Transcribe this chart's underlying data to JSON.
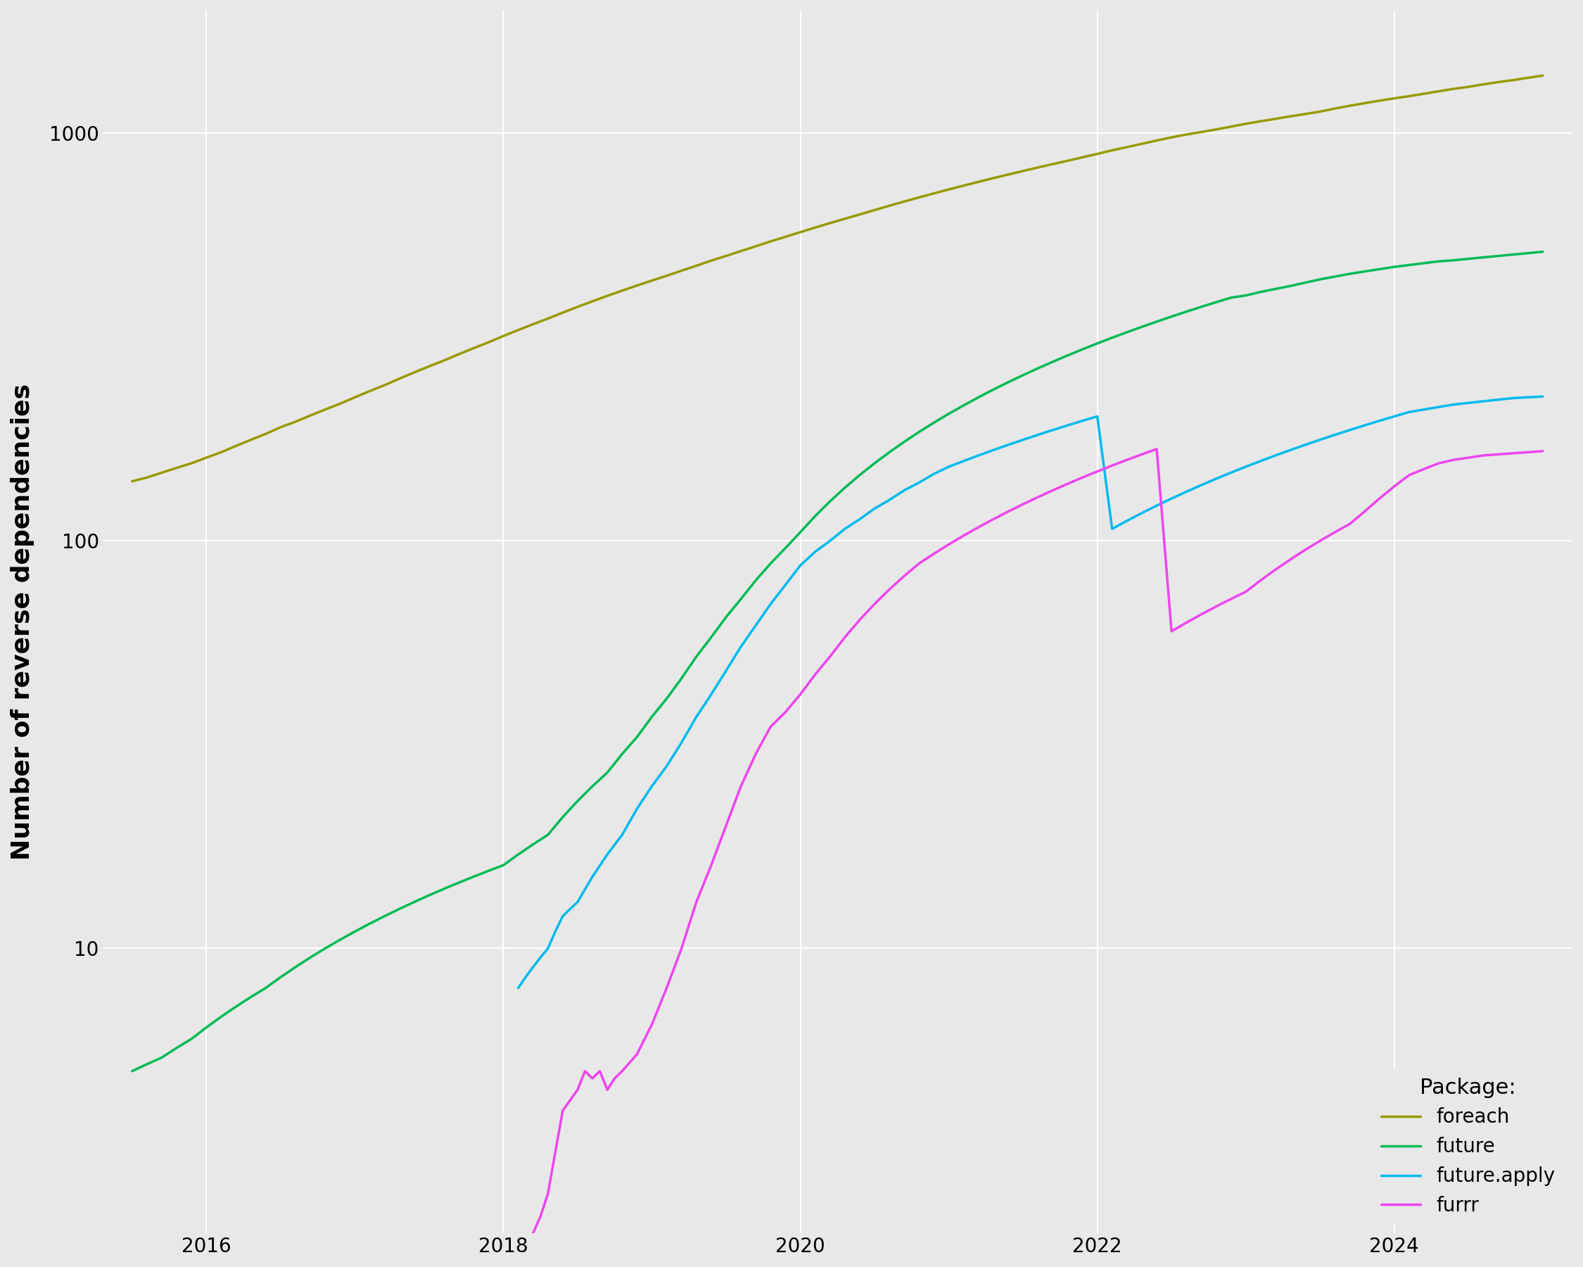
{
  "title": "",
  "ylabel": "Number of reverse dependencies",
  "background_color": "#e8e8e8",
  "grid_color": "white",
  "legend_title": "Package:",
  "legend_labels": [
    "foreach",
    "future",
    "future.apply",
    "furrr"
  ],
  "legend_colors": [
    "#999900",
    "#00bb55",
    "#00bbee",
    "#ee44ee"
  ],
  "line_colors": {
    "foreach": "#999900",
    "future": "#00bb55",
    "future.apply": "#00bbee",
    "furrr": "#ee44ee"
  },
  "foreach": {
    "x": [
      2015.5,
      2015.6,
      2015.7,
      2015.8,
      2015.9,
      2016.0,
      2016.1,
      2016.2,
      2016.3,
      2016.4,
      2016.5,
      2016.6,
      2016.7,
      2016.8,
      2016.9,
      2017.0,
      2017.1,
      2017.2,
      2017.3,
      2017.4,
      2017.5,
      2017.6,
      2017.7,
      2017.8,
      2017.9,
      2018.0,
      2018.1,
      2018.2,
      2018.3,
      2018.4,
      2018.5,
      2018.6,
      2018.7,
      2018.8,
      2018.9,
      2019.0,
      2019.1,
      2019.2,
      2019.3,
      2019.4,
      2019.5,
      2019.6,
      2019.7,
      2019.8,
      2019.9,
      2020.0,
      2020.1,
      2020.2,
      2020.3,
      2020.4,
      2020.5,
      2020.6,
      2020.7,
      2020.8,
      2020.9,
      2021.0,
      2021.1,
      2021.2,
      2021.3,
      2021.4,
      2021.5,
      2021.6,
      2021.7,
      2021.8,
      2021.9,
      2022.0,
      2022.1,
      2022.2,
      2022.3,
      2022.4,
      2022.5,
      2022.6,
      2022.7,
      2022.8,
      2022.9,
      2023.0,
      2023.1,
      2023.2,
      2023.3,
      2023.4,
      2023.5,
      2023.6,
      2023.7,
      2023.8,
      2023.9,
      2024.0,
      2024.1,
      2024.2,
      2024.3,
      2024.4,
      2024.5,
      2024.6,
      2024.7,
      2024.8,
      2024.9,
      2025.0
    ],
    "y": [
      140,
      143,
      147,
      151,
      155,
      160,
      165,
      171,
      177,
      183,
      190,
      196,
      203,
      210,
      217,
      225,
      233,
      241,
      250,
      259,
      268,
      277,
      287,
      297,
      307,
      318,
      329,
      340,
      351,
      363,
      375,
      387,
      399,
      411,
      423,
      435,
      447,
      460,
      473,
      487,
      500,
      514,
      528,
      543,
      557,
      572,
      587,
      602,
      617,
      632,
      648,
      664,
      680,
      696,
      712,
      728,
      744,
      760,
      776,
      792,
      808,
      824,
      840,
      856,
      873,
      890,
      908,
      925,
      942,
      960,
      977,
      993,
      1007,
      1022,
      1038,
      1055,
      1070,
      1085,
      1100,
      1115,
      1130,
      1150,
      1168,
      1185,
      1202,
      1218,
      1233,
      1250,
      1268,
      1285,
      1300,
      1318,
      1335,
      1350,
      1368,
      1385
    ]
  },
  "future": {
    "x": [
      2015.5,
      2015.6,
      2015.7,
      2015.8,
      2015.9,
      2016.0,
      2016.1,
      2016.2,
      2016.3,
      2016.4,
      2016.5,
      2016.6,
      2016.7,
      2016.8,
      2016.9,
      2017.0,
      2017.1,
      2017.2,
      2017.3,
      2017.4,
      2017.5,
      2017.6,
      2017.7,
      2017.8,
      2017.9,
      2018.0,
      2018.1,
      2018.2,
      2018.3,
      2018.4,
      2018.5,
      2018.6,
      2018.7,
      2018.8,
      2018.9,
      2019.0,
      2019.1,
      2019.2,
      2019.3,
      2019.4,
      2019.5,
      2019.6,
      2019.7,
      2019.8,
      2019.9,
      2020.0,
      2020.1,
      2020.2,
      2020.3,
      2020.4,
      2020.5,
      2020.6,
      2020.7,
      2020.8,
      2020.9,
      2021.0,
      2021.1,
      2021.2,
      2021.3,
      2021.4,
      2021.5,
      2021.6,
      2021.7,
      2021.8,
      2021.9,
      2022.0,
      2022.1,
      2022.2,
      2022.3,
      2022.4,
      2022.5,
      2022.6,
      2022.7,
      2022.8,
      2022.9,
      2023.0,
      2023.1,
      2023.2,
      2023.3,
      2023.4,
      2023.5,
      2023.6,
      2023.7,
      2023.8,
      2023.9,
      2024.0,
      2024.1,
      2024.2,
      2024.3,
      2024.4,
      2024.5,
      2024.6,
      2024.7,
      2024.8,
      2024.9,
      2025.0
    ],
    "y": [
      5,
      5.2,
      5.4,
      5.7,
      6,
      6.4,
      6.8,
      7.2,
      7.6,
      8.0,
      8.5,
      9.0,
      9.5,
      10,
      10.5,
      11,
      11.5,
      12,
      12.5,
      13,
      13.5,
      14,
      14.5,
      15,
      15.5,
      16,
      17,
      18,
      19,
      21,
      23,
      25,
      27,
      30,
      33,
      37,
      41,
      46,
      52,
      58,
      65,
      72,
      80,
      88,
      96,
      105,
      115,
      125,
      135,
      145,
      155,
      165,
      175,
      185,
      195,
      205,
      215,
      225,
      235,
      245,
      255,
      265,
      275,
      285,
      295,
      305,
      315,
      325,
      335,
      345,
      355,
      365,
      375,
      385,
      395,
      400,
      408,
      415,
      422,
      430,
      438,
      445,
      452,
      458,
      464,
      470,
      475,
      480,
      485,
      488,
      492,
      496,
      500,
      504,
      508,
      512
    ]
  },
  "future.apply": {
    "x": [
      2018.1,
      2018.15,
      2018.2,
      2018.25,
      2018.3,
      2018.35,
      2018.4,
      2018.5,
      2018.6,
      2018.7,
      2018.8,
      2018.9,
      2019.0,
      2019.1,
      2019.2,
      2019.3,
      2019.4,
      2019.5,
      2019.6,
      2019.7,
      2019.8,
      2019.9,
      2020.0,
      2020.1,
      2020.2,
      2020.3,
      2020.4,
      2020.5,
      2020.6,
      2020.7,
      2020.8,
      2020.9,
      2021.0,
      2021.1,
      2021.2,
      2021.3,
      2021.4,
      2021.5,
      2021.6,
      2021.7,
      2021.8,
      2021.9,
      2022.0,
      2022.1,
      2022.2,
      2022.3,
      2022.4,
      2022.5,
      2022.6,
      2022.7,
      2022.8,
      2022.9,
      2023.0,
      2023.1,
      2023.2,
      2023.3,
      2023.4,
      2023.5,
      2023.6,
      2023.7,
      2023.8,
      2023.9,
      2024.0,
      2024.1,
      2024.2,
      2024.3,
      2024.4,
      2024.5,
      2024.6,
      2024.7,
      2024.8,
      2024.9,
      2025.0
    ],
    "y": [
      8,
      8.5,
      9,
      9.5,
      10,
      11,
      12,
      13,
      15,
      17,
      19,
      22,
      25,
      28,
      32,
      37,
      42,
      48,
      55,
      62,
      70,
      78,
      87,
      94,
      100,
      107,
      113,
      120,
      126,
      133,
      139,
      146,
      152,
      157,
      162,
      167,
      172,
      177,
      182,
      187,
      192,
      197,
      202,
      107,
      112,
      117,
      122,
      127,
      132,
      137,
      142,
      147,
      152,
      157,
      162,
      167,
      172,
      177,
      182,
      187,
      192,
      197,
      202,
      207,
      210,
      213,
      216,
      218,
      220,
      222,
      224,
      225,
      226
    ]
  },
  "furrr": {
    "x": [
      2018.2,
      2018.25,
      2018.3,
      2018.4,
      2018.5,
      2018.55,
      2018.6,
      2018.65,
      2018.7,
      2018.75,
      2018.8,
      2018.9,
      2019.0,
      2019.1,
      2019.2,
      2019.3,
      2019.4,
      2019.5,
      2019.6,
      2019.7,
      2019.8,
      2019.9,
      2020.0,
      2020.1,
      2020.2,
      2020.3,
      2020.4,
      2020.5,
      2020.6,
      2020.7,
      2020.8,
      2020.9,
      2021.0,
      2021.1,
      2021.2,
      2021.3,
      2021.4,
      2021.5,
      2021.6,
      2021.7,
      2021.8,
      2021.9,
      2022.0,
      2022.1,
      2022.2,
      2022.3,
      2022.4,
      2022.5,
      2022.6,
      2022.7,
      2022.8,
      2022.9,
      2023.0,
      2023.1,
      2023.2,
      2023.3,
      2023.4,
      2023.5,
      2023.6,
      2023.7,
      2023.8,
      2023.9,
      2024.0,
      2024.1,
      2024.2,
      2024.3,
      2024.4,
      2024.5,
      2024.6,
      2024.7,
      2024.8,
      2024.9,
      2025.0
    ],
    "y": [
      2,
      2.2,
      2.5,
      4,
      4.5,
      5,
      4.8,
      5,
      4.5,
      4.8,
      5,
      5.5,
      6.5,
      8,
      10,
      13,
      16,
      20,
      25,
      30,
      35,
      38,
      42,
      47,
      52,
      58,
      64,
      70,
      76,
      82,
      88,
      93,
      98,
      103,
      108,
      113,
      118,
      123,
      128,
      133,
      138,
      143,
      148,
      153,
      158,
      163,
      168,
      60,
      63,
      66,
      69,
      72,
      75,
      80,
      85,
      90,
      95,
      100,
      105,
      110,
      118,
      127,
      136,
      145,
      150,
      155,
      158,
      160,
      162,
      163,
      164,
      165,
      166
    ]
  },
  "ylim": [
    2,
    2000
  ],
  "xlim": [
    2015.3,
    2025.2
  ],
  "xticks": [
    2016,
    2018,
    2020,
    2022,
    2024
  ],
  "yticks": [
    10,
    100,
    1000
  ],
  "linewidth": 2.5,
  "ylabel_fontsize": 26,
  "tick_fontsize": 20,
  "legend_fontsize": 20,
  "legend_title_fontsize": 22
}
